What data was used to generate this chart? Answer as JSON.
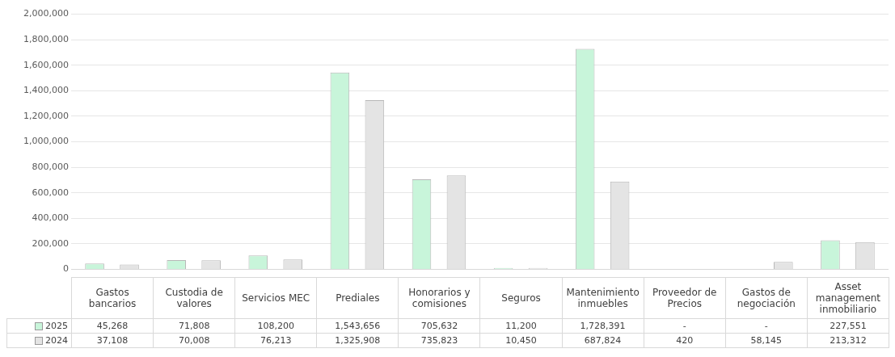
{
  "chart_data": {
    "type": "bar",
    "categories": [
      "Gastos bancarios",
      "Custodia de valores",
      "Servicios MEC",
      "Prediales",
      "Honorarios y comisiones",
      "Seguros",
      "Mantenimiento inmuebles",
      "Proveedor de Precios",
      "Gastos de negociación",
      "Asset management inmobiliario"
    ],
    "series": [
      {
        "name": "2025",
        "color": "#c8f5da",
        "values": [
          45268,
          71808,
          108200,
          1543656,
          705632,
          11200,
          1728391,
          null,
          null,
          227551
        ],
        "value_labels": [
          "45,268",
          "71,808",
          "108,200",
          "1,543,656",
          "705,632",
          "11,200",
          "1,728,391",
          "-",
          "-",
          "227,551"
        ]
      },
      {
        "name": "2024",
        "color": "#e4e4e4",
        "values": [
          37108,
          70008,
          76213,
          1325908,
          735823,
          10450,
          687824,
          420,
          58145,
          213312
        ],
        "value_labels": [
          "37,108",
          "70,008",
          "76,213",
          "1,325,908",
          "735,823",
          "10,450",
          "687,824",
          "420",
          "58,145",
          "213,312"
        ]
      }
    ],
    "ylim": [
      0,
      2000000
    ],
    "yticks": [
      {
        "value": 0,
        "label": "0"
      },
      {
        "value": 200000,
        "label": "200,000"
      },
      {
        "value": 400000,
        "label": "400,000"
      },
      {
        "value": 600000,
        "label": "600,000"
      },
      {
        "value": 800000,
        "label": "800,000"
      },
      {
        "value": 1000000,
        "label": "1,000,000"
      },
      {
        "value": 1200000,
        "label": "1,200,000"
      },
      {
        "value": 1400000,
        "label": "1,400,000"
      },
      {
        "value": 1600000,
        "label": "1,600,000"
      },
      {
        "value": 1800000,
        "label": "1,800,000"
      },
      {
        "value": 2000000,
        "label": "2,000,000"
      }
    ],
    "grid": "y",
    "legend": "bottom"
  }
}
